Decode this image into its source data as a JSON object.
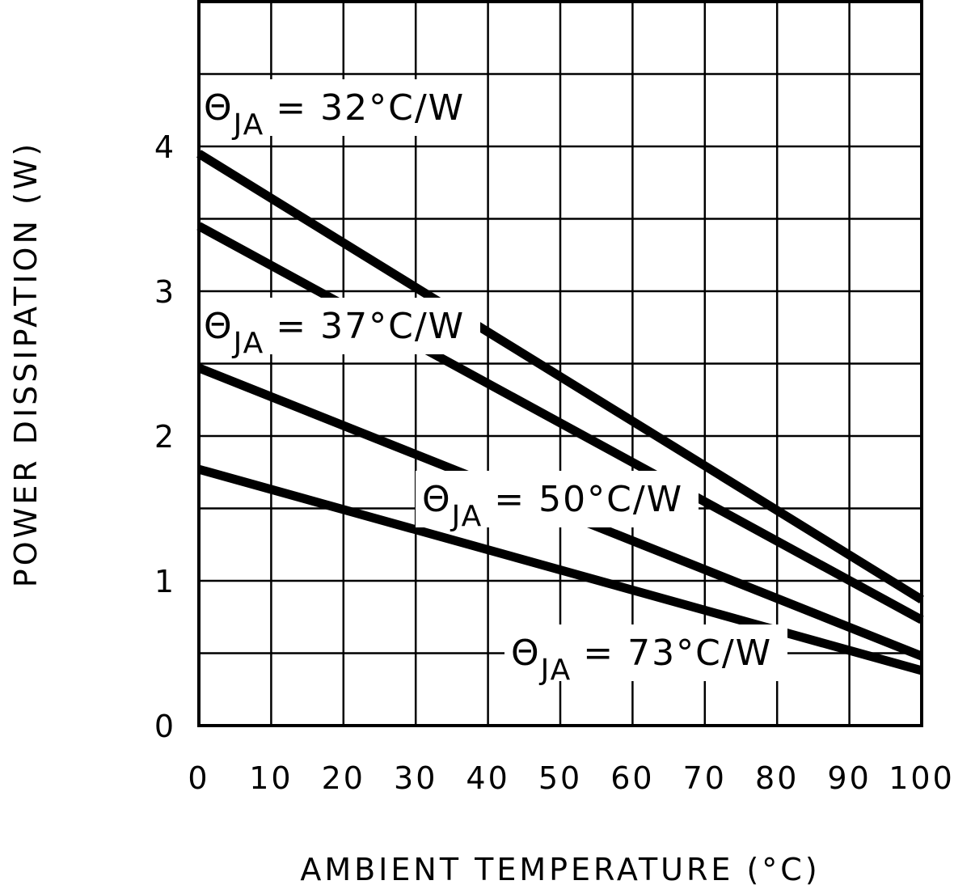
{
  "chart_data": {
    "type": "line",
    "title": "",
    "xlabel": "AMBIENT TEMPERATURE (°C)",
    "ylabel": "POWER DISSIPATION (W)",
    "xlim": [
      0,
      100
    ],
    "ylim": [
      0,
      5
    ],
    "x_ticks": [
      0,
      10,
      20,
      30,
      40,
      50,
      60,
      70,
      80,
      90,
      100
    ],
    "x_tick_labels": [
      "0",
      "10",
      "20",
      "30",
      "40",
      "50",
      "60",
      "70",
      "80",
      "90",
      "100"
    ],
    "y_ticks": [
      0,
      1,
      2,
      3,
      4
    ],
    "y_tick_labels": [
      "0",
      "1",
      "2",
      "3",
      "4"
    ],
    "grid": true,
    "x_grid_step": 10,
    "y_grid_step": 0.5,
    "series": [
      {
        "name": "ΘJA = 32°C/W",
        "label_symbol": "Θ",
        "label_subscript": "JA",
        "label_text": "= 32°C/W",
        "x": [
          0,
          100
        ],
        "values": [
          3.95,
          0.87
        ]
      },
      {
        "name": "ΘJA = 37°C/W",
        "label_symbol": "Θ",
        "label_subscript": "JA",
        "label_text": "= 37°C/W",
        "x": [
          0,
          100
        ],
        "values": [
          3.45,
          0.73
        ]
      },
      {
        "name": "ΘJA = 50°C/W",
        "label_symbol": "Θ",
        "label_subscript": "JA",
        "label_text": "= 50°C/W",
        "x": [
          0,
          100
        ],
        "values": [
          2.47,
          0.48
        ]
      },
      {
        "name": "ΘJA = 73°C/W",
        "label_symbol": "Θ",
        "label_subscript": "JA",
        "label_text": "= 73°C/W",
        "x": [
          0,
          100
        ],
        "values": [
          1.77,
          0.38
        ]
      }
    ]
  },
  "colors": {
    "line": "#000000",
    "grid": "#000000",
    "background": "#ffffff"
  }
}
